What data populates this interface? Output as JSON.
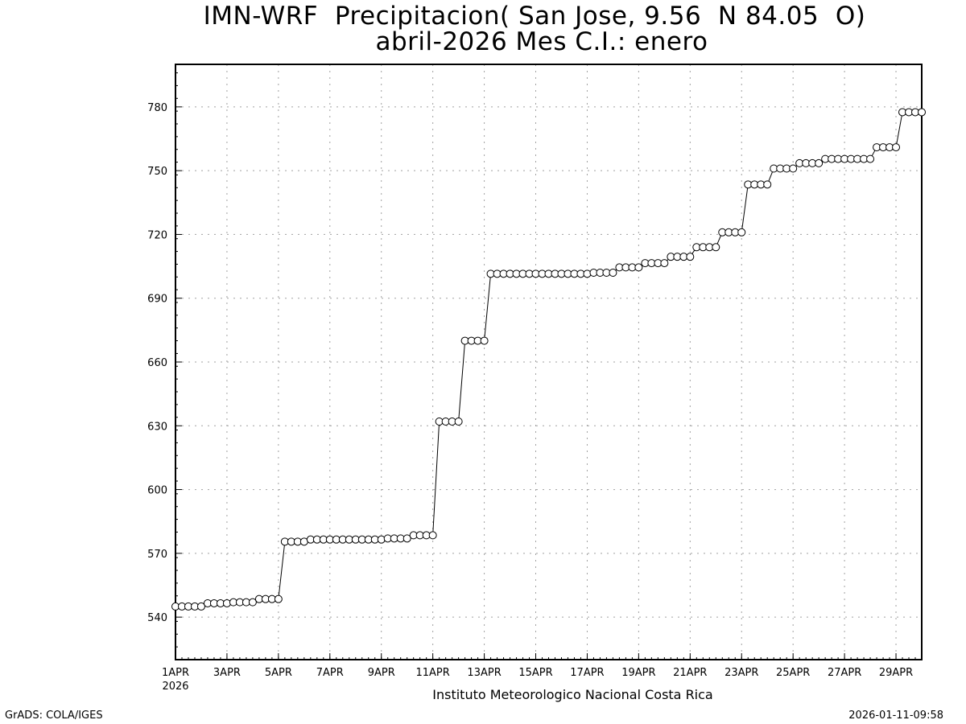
{
  "chart_data": {
    "type": "line",
    "title": "IMN-WRF  Precipitacion( San Jose, 9.56  N 84.05  O)",
    "subtitle": "abril-2026 Mes C.I.: enero",
    "xlabel": "Instituto Meteorologico Nacional Costa Rica",
    "ylabel": "",
    "x_tick_labels": [
      "1APR",
      "3APR",
      "5APR",
      "7APR",
      "9APR",
      "11APR",
      "13APR",
      "15APR",
      "17APR",
      "19APR",
      "21APR",
      "23APR",
      "25APR",
      "27APR",
      "29APR"
    ],
    "x_year_label": "2026",
    "xlim_days": [
      1,
      30
    ],
    "y_ticks": [
      540,
      570,
      600,
      630,
      660,
      690,
      720,
      750,
      780
    ],
    "ylim": [
      520,
      800
    ],
    "grid": true,
    "marker": "open-circle",
    "series": [
      {
        "x_day": [
          1.0,
          1.25,
          1.5,
          1.75,
          2.0,
          2.25,
          2.5,
          2.75,
          3.0,
          3.25,
          3.5,
          3.75,
          4.0,
          4.25,
          4.5,
          4.75,
          5.0,
          5.25,
          5.5,
          5.75,
          6.0,
          6.25,
          6.5,
          6.75,
          7.0,
          7.25,
          7.5,
          7.75,
          8.0,
          8.25,
          8.5,
          8.75,
          9.0,
          9.25,
          9.5,
          9.75,
          10.0,
          10.25,
          10.5,
          10.75,
          11.0,
          11.25,
          11.5,
          11.75,
          12.0,
          12.25,
          12.5,
          12.75,
          13.0,
          13.25,
          13.5,
          13.75,
          14.0,
          14.25,
          14.5,
          14.75,
          15.0,
          15.25,
          15.5,
          15.75,
          16.0,
          16.25,
          16.5,
          16.75,
          17.0,
          17.25,
          17.5,
          17.75,
          18.0,
          18.25,
          18.5,
          18.75,
          19.0,
          19.25,
          19.5,
          19.75,
          20.0,
          20.25,
          20.5,
          20.75,
          21.0,
          21.25,
          21.5,
          21.75,
          22.0,
          22.25,
          22.5,
          22.75,
          23.0,
          23.25,
          23.5,
          23.75,
          24.0,
          24.25,
          24.5,
          24.75,
          25.0,
          25.25,
          25.5,
          25.75,
          26.0,
          26.25,
          26.5,
          26.75,
          27.0,
          27.25,
          27.5,
          27.75,
          28.0,
          28.25,
          28.5,
          28.75,
          29.0,
          29.25,
          29.5,
          29.75,
          30.0
        ],
        "values": [
          545,
          545,
          545,
          545,
          545,
          546.5,
          546.5,
          546.5,
          546.5,
          547,
          547,
          547,
          547,
          548.5,
          548.5,
          548.5,
          548.5,
          575.5,
          575.5,
          575.5,
          575.5,
          576.5,
          576.5,
          576.5,
          576.5,
          576.5,
          576.5,
          576.5,
          576.5,
          576.5,
          576.5,
          576.5,
          576.5,
          577,
          577,
          577,
          577,
          578.5,
          578.5,
          578.5,
          578.5,
          632,
          632,
          632,
          632,
          670,
          670,
          670,
          670,
          701.5,
          701.5,
          701.5,
          701.5,
          701.5,
          701.5,
          701.5,
          701.5,
          701.5,
          701.5,
          701.5,
          701.5,
          701.5,
          701.5,
          701.5,
          701.5,
          702,
          702,
          702,
          702,
          704.5,
          704.5,
          704.5,
          704.5,
          706.5,
          706.5,
          706.5,
          706.5,
          709.5,
          709.5,
          709.5,
          709.5,
          714,
          714,
          714,
          714,
          721,
          721,
          721,
          721,
          743.5,
          743.5,
          743.5,
          743.5,
          751,
          751,
          751,
          751,
          753.5,
          753.5,
          753.5,
          753.5,
          755.5,
          755.5,
          755.5,
          755.5,
          755.5,
          755.5,
          755.5,
          755.5,
          761,
          761,
          761,
          761,
          777.5,
          777.5,
          777.5,
          777.5
        ]
      }
    ]
  },
  "footer": {
    "left": "GrADS: COLA/IGES",
    "right": "2026-01-11-09:58"
  },
  "colors": {
    "line": "#000000",
    "grid": "#a0a0a0",
    "marker_fill": "#ffffff"
  }
}
